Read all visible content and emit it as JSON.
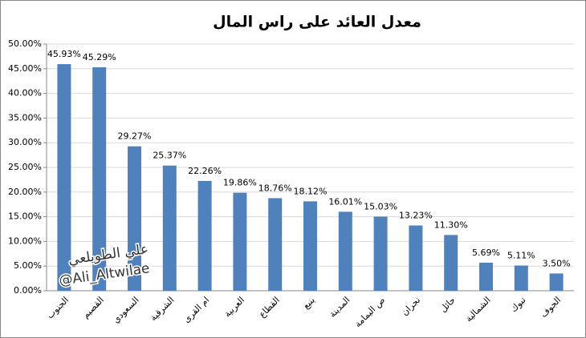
{
  "chart_data": {
    "type": "bar",
    "title": "معدل العائد على راس المال",
    "categories": [
      "الجنوب",
      "القصيم",
      "السعودي",
      "الشرقية",
      "ام القرى",
      "العربية",
      "القطاع",
      "ينبع",
      "المدينة",
      "ص اليمامة",
      "نجران",
      "حائل",
      "الشمالية",
      "تبوك",
      "الجوف"
    ],
    "values": [
      45.93,
      45.29,
      29.27,
      25.37,
      22.26,
      19.86,
      18.76,
      18.12,
      16.01,
      15.03,
      13.23,
      11.3,
      5.69,
      5.11,
      3.5
    ],
    "value_labels": [
      "45.93%",
      "45.29%",
      "29.27%",
      "25.37%",
      "22.26%",
      "19.86%",
      "18.76%",
      "18.12%",
      "16.01%",
      "15.03%",
      "13.23%",
      "11.30%",
      "5.69%",
      "5.11%",
      "3.50%"
    ],
    "color": "#4f81bd",
    "ylim": [
      0,
      50
    ],
    "yticks": [
      {
        "value": 0,
        "label": "0.00%"
      },
      {
        "value": 5,
        "label": "5.00%"
      },
      {
        "value": 10,
        "label": "10.00%"
      },
      {
        "value": 15,
        "label": "15.00%"
      },
      {
        "value": 20,
        "label": "20.00%"
      },
      {
        "value": 25,
        "label": "25.00%"
      },
      {
        "value": 30,
        "label": "30.00%"
      },
      {
        "value": 35,
        "label": "35.00%"
      },
      {
        "value": 40,
        "label": "40.00%"
      },
      {
        "value": 45,
        "label": "45.00%"
      },
      {
        "value": 50,
        "label": "50.00%"
      }
    ],
    "grid": true,
    "annotations": [
      "علي الطويلعي",
      "@Ali_Altwilae"
    ]
  }
}
